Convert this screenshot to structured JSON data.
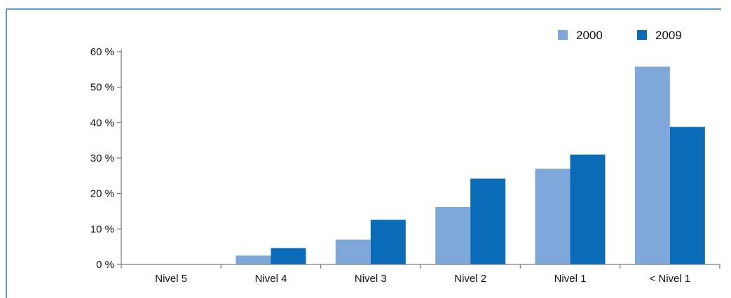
{
  "colors": {
    "series_2000": "#7fa7d9",
    "series_2009": "#0a6bb8",
    "frame": "#5b9bd5"
  },
  "chart_data": {
    "type": "bar",
    "categories": [
      "Nivel 5",
      "Nivel 4",
      "Nivel 3",
      "Nivel 2",
      "Nivel 1",
      "< Nivel 1"
    ],
    "series": [
      {
        "name": "2000",
        "values": [
          0,
          2.5,
          7,
          16.2,
          27,
          55.8
        ]
      },
      {
        "name": "2009",
        "values": [
          0,
          4.6,
          12.6,
          24.2,
          31,
          38.8
        ]
      }
    ],
    "ylim": [
      0,
      60
    ],
    "yticks": [
      0,
      10,
      20,
      30,
      40,
      50,
      60
    ],
    "ytick_labels": [
      "0 %",
      "10 %",
      "20 %",
      "30 %",
      "40 %",
      "50 %",
      "60 %"
    ],
    "legend_position": "top-right",
    "grid": false
  }
}
